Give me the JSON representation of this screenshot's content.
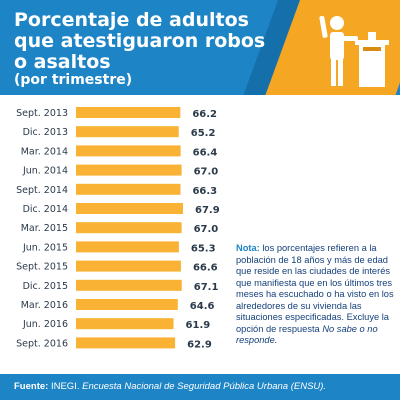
{
  "header": {
    "title_lines": [
      "Porcentaje de adultos",
      "que atestiguaron robos",
      "o asaltos"
    ],
    "subtitle": "(por trimestre)",
    "icon": "ballot-box-voter-icon"
  },
  "chart_data": {
    "type": "bar",
    "orientation": "horizontal",
    "categories": [
      "Sept. 2013",
      "Dic. 2013",
      "Mar. 2014",
      "Jun. 2014",
      "Sept. 2014",
      "Dic. 2014",
      "Mar. 2015",
      "Jun. 2015",
      "Sept. 2015",
      "Dic. 2015",
      "Mar. 2016",
      "Jun. 2016",
      "Sept. 2016"
    ],
    "values": [
      66.2,
      65.2,
      66.4,
      67.0,
      66.3,
      67.9,
      67.0,
      65.3,
      66.6,
      67.1,
      64.6,
      61.9,
      62.9
    ],
    "value_labels": [
      "66.2",
      "65.2",
      "66.4",
      "67.0",
      "66.3",
      "67.9",
      "67.0",
      "65.3",
      "66.6",
      "67.1",
      "64.6",
      "61.9",
      "62.9"
    ],
    "title": "Porcentaje de adultos que atestiguaron robos o asaltos",
    "subtitle": "(por trimestre)",
    "xlabel": "",
    "ylabel": "",
    "grid": false,
    "legend": "none",
    "bar_color": "#f9b233"
  },
  "note": {
    "label": "Nota:",
    "text": " los porcentajes refieren a la población de 18 años y más de edad que reside en las ciudades de interés que manifiesta que en los últimos tres meses ha escuchado o ha visto en los alrededores de su vivienda las situaciones especificadas. Excluye la opción de respuesta ",
    "italic": "No sabe o no responde."
  },
  "footer": {
    "label": "Fuente:",
    "source": " INEGI. ",
    "italic": "Encuesta Nacional de Seguridad Pública Urbana (ENSU)."
  },
  "colors": {
    "header_blue": "#1d84c6",
    "accent_orange": "#f5a623",
    "bar": "#f9b233",
    "text_dark": "#2b3a4a"
  }
}
